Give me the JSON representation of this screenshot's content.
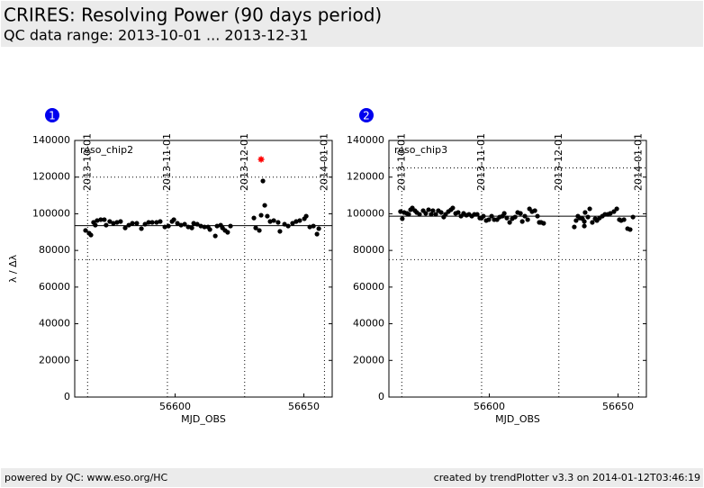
{
  "header": {
    "title": "CRIRES: Resolving Power (90 days period)",
    "subtitle": "QC data range: 2013-10-01 ... 2013-12-31"
  },
  "chart_data": [
    {
      "type": "scatter",
      "panel": "1",
      "xlabel": "MJD_OBS",
      "ylabel": "λ / Δλ",
      "xlim": [
        56561,
        56661
      ],
      "ylim": [
        0,
        140000
      ],
      "xticks": [
        56600,
        56650
      ],
      "yticks": [
        0,
        20000,
        40000,
        60000,
        80000,
        100000,
        120000,
        140000
      ],
      "x2ticks": [
        {
          "value": 56566,
          "label": "2013-10-01"
        },
        {
          "value": 56597,
          "label": "2013-11-01"
        },
        {
          "value": 56627,
          "label": "2013-12-01"
        },
        {
          "value": 56658,
          "label": "2014-01-01"
        }
      ],
      "hlines": [
        {
          "value": 120000,
          "style": "dotted"
        },
        {
          "value": 75000,
          "style": "dotted"
        },
        {
          "value": 93500,
          "style": "solid"
        }
      ],
      "series": [
        {
          "name": "reso_chip2",
          "color": "#000000",
          "marker": "dot",
          "x": [
            56565.2,
            56566.6,
            56567.3,
            56568.3,
            56569.0,
            56569.7,
            56571.1,
            56572.5,
            56573.2,
            56574.6,
            56576.0,
            56577.4,
            56578.8,
            56580.6,
            56582.0,
            56583.4,
            56585.1,
            56586.9,
            56588.3,
            56589.7,
            56591.1,
            56592.8,
            56594.2,
            56596.0,
            56597.4,
            56598.8,
            56599.5,
            56600.9,
            56602.3,
            56603.7,
            56605.1,
            56606.5,
            56607.2,
            56608.6,
            56610.0,
            56611.4,
            56612.8,
            56613.5,
            56615.6,
            56616.3,
            56617.7,
            56618.4,
            56619.4,
            56620.4,
            56621.5,
            56630.6,
            56631.3,
            56632.7,
            56633.4,
            56634.1,
            56634.8,
            56635.8,
            56636.9,
            56638.3,
            56640.0,
            56640.7,
            56642.5,
            56643.9,
            56645.6,
            56647.0,
            56648.4,
            56650.2,
            56650.9,
            56652.3,
            56653.7,
            56655.1,
            56655.8
          ],
          "values": [
            90900,
            89400,
            88400,
            95300,
            93800,
            96300,
            96800,
            96800,
            93800,
            95800,
            94800,
            95300,
            95800,
            92300,
            93800,
            94800,
            94800,
            91900,
            94300,
            95300,
            95300,
            95300,
            95800,
            92800,
            93300,
            95800,
            96800,
            94800,
            93800,
            94300,
            92800,
            92300,
            94800,
            94300,
            93300,
            92800,
            92800,
            91400,
            87900,
            93300,
            93800,
            92300,
            90900,
            89900,
            93300,
            97700,
            92300,
            90900,
            99200,
            117900,
            104600,
            98700,
            95800,
            96300,
            95300,
            90400,
            94300,
            93300,
            94800,
            95800,
            96300,
            97300,
            98700,
            92800,
            93300,
            88900,
            91900
          ]
        },
        {
          "color": "#ff0000",
          "marker": "star",
          "x": [
            56633.4
          ],
          "values": [
            129700
          ]
        }
      ]
    },
    {
      "type": "scatter",
      "panel": "2",
      "xlabel": "MJD_OBS",
      "xlim": [
        56561,
        56661
      ],
      "ylim": [
        0,
        140000
      ],
      "xticks": [
        56600,
        56650
      ],
      "yticks": [
        0,
        20000,
        40000,
        60000,
        80000,
        100000,
        120000,
        140000
      ],
      "x2ticks": [
        {
          "value": 56566,
          "label": "2013-10-01"
        },
        {
          "value": 56597,
          "label": "2013-11-01"
        },
        {
          "value": 56627,
          "label": "2013-12-01"
        },
        {
          "value": 56658,
          "label": "2014-01-01"
        }
      ],
      "hlines": [
        {
          "value": 125000,
          "style": "dotted"
        },
        {
          "value": 75000,
          "style": "dotted"
        },
        {
          "value": 98700,
          "style": "solid"
        }
      ],
      "series": [
        {
          "name": "reso_chip3",
          "color": "#000000",
          "marker": "dot",
          "x": [
            56565.5,
            56566.2,
            56566.9,
            56568.0,
            56568.7,
            56569.4,
            56570.1,
            56571.1,
            56571.8,
            56572.9,
            56574.3,
            56575.3,
            56576.4,
            56577.4,
            56578.1,
            56579.2,
            56580.2,
            56581.3,
            56582.3,
            56583.0,
            56584.1,
            56585.1,
            56585.8,
            56586.9,
            56587.9,
            56589.0,
            56590.0,
            56591.1,
            56592.1,
            56593.2,
            56594.2,
            56595.3,
            56596.3,
            56597.0,
            56597.7,
            56598.8,
            56599.8,
            56600.9,
            56601.9,
            56603.0,
            56604.0,
            56605.1,
            56605.8,
            56606.8,
            56607.9,
            56608.9,
            56610.0,
            56611.0,
            56612.1,
            56612.8,
            56613.8,
            56614.9,
            56615.6,
            56616.6,
            56617.7,
            56618.7,
            56619.4,
            56620.1,
            56621.1,
            56633.0,
            56633.7,
            56634.4,
            56635.1,
            56636.2,
            56636.9,
            56636.9,
            56637.2,
            56638.3,
            56639.0,
            56640.0,
            56641.1,
            56641.8,
            56642.8,
            56643.9,
            56644.9,
            56646.0,
            56647.0,
            56648.4,
            56649.5,
            56650.5,
            56651.2,
            56652.3,
            56653.7,
            56654.7,
            56655.8
          ],
          "values": [
            101200,
            97300,
            100700,
            100200,
            99700,
            102200,
            103200,
            101700,
            100700,
            99700,
            101700,
            100200,
            102200,
            99700,
            101700,
            99700,
            101700,
            100700,
            98200,
            99700,
            101200,
            102200,
            103200,
            100200,
            100700,
            98700,
            100200,
            99200,
            99700,
            98700,
            99700,
            99700,
            97700,
            97700,
            98700,
            96300,
            96800,
            98700,
            96800,
            96800,
            98200,
            98700,
            100200,
            97700,
            95300,
            97300,
            98200,
            100700,
            100200,
            95800,
            98700,
            96800,
            102700,
            101200,
            101700,
            98700,
            95300,
            95300,
            94800,
            92800,
            96300,
            98700,
            97700,
            97300,
            95800,
            93300,
            100700,
            98200,
            102700,
            95300,
            97300,
            96300,
            97700,
            98700,
            99700,
            99700,
            100200,
            101200,
            102700,
            96800,
            96300,
            96800,
            91900,
            91400,
            98200
          ]
        }
      ]
    }
  ],
  "footer": {
    "left": "powered by QC: www.eso.org/HC",
    "right": "created by trendPlotter v3.3 on 2014-01-12T03:46:19"
  }
}
